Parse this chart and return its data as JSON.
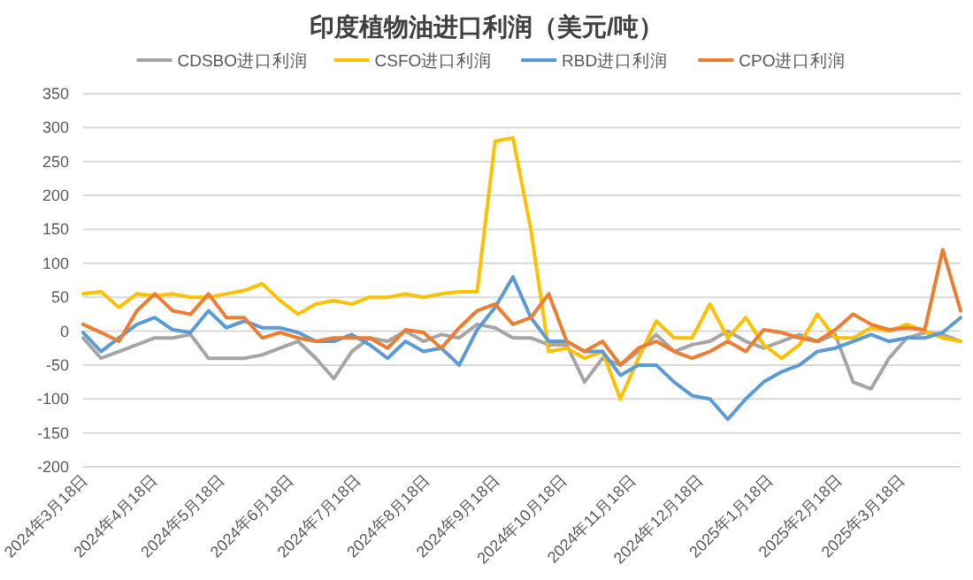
{
  "chart_data": {
    "type": "line",
    "title": "印度植物油进口利润（美元/吨）",
    "x": [
      "2024-03-18",
      "2024-03-26",
      "2024-04-03",
      "2024-04-11",
      "2024-04-19",
      "2024-04-27",
      "2024-05-05",
      "2024-05-13",
      "2024-05-21",
      "2024-05-29",
      "2024-06-06",
      "2024-06-14",
      "2024-06-22",
      "2024-06-30",
      "2024-07-08",
      "2024-07-16",
      "2024-07-24",
      "2024-08-01",
      "2024-08-09",
      "2024-08-17",
      "2024-08-25",
      "2024-09-02",
      "2024-09-10",
      "2024-09-18",
      "2024-09-26",
      "2024-10-04",
      "2024-10-12",
      "2024-10-20",
      "2024-10-28",
      "2024-11-05",
      "2024-11-13",
      "2024-11-21",
      "2024-11-29",
      "2024-12-07",
      "2024-12-15",
      "2024-12-23",
      "2024-12-31",
      "2025-01-08",
      "2025-01-16",
      "2025-01-24",
      "2025-02-01",
      "2025-02-09",
      "2025-02-17",
      "2025-02-25",
      "2025-03-05",
      "2025-03-13",
      "2025-03-21",
      "2025-03-29",
      "2025-04-06",
      "2025-04-14"
    ],
    "series": [
      {
        "name": "CDSBO进口利润",
        "color": "#a5a5a5",
        "values": [
          -10,
          -40,
          -30,
          -20,
          -10,
          -10,
          -5,
          -40,
          -40,
          -40,
          -35,
          -25,
          -15,
          -40,
          -70,
          -30,
          -10,
          -15,
          0,
          -15,
          -5,
          -10,
          10,
          5,
          -10,
          -10,
          -20,
          -20,
          -75,
          -40,
          -50,
          -30,
          -5,
          -30,
          -20,
          -15,
          0,
          -15,
          -25,
          -15,
          -5,
          -15,
          -5,
          -75,
          -85,
          -40,
          -10,
          -2,
          -5,
          -15
        ]
      },
      {
        "name": "CSFO进口利润",
        "color": "#ffc000",
        "values": [
          55,
          58,
          35,
          55,
          52,
          55,
          50,
          50,
          55,
          60,
          70,
          45,
          25,
          40,
          45,
          40,
          50,
          50,
          55,
          50,
          55,
          58,
          58,
          280,
          285,
          150,
          -30,
          -25,
          -40,
          -30,
          -100,
          -40,
          15,
          -10,
          -10,
          40,
          -10,
          20,
          -20,
          -40,
          -20,
          25,
          -10,
          -10,
          5,
          0,
          10,
          0,
          -10,
          -15
        ]
      },
      {
        "name": "RBD进口利润",
        "color": "#5b9bd5",
        "values": [
          -2,
          -30,
          -10,
          10,
          20,
          2,
          -2,
          30,
          5,
          15,
          5,
          5,
          -2,
          -15,
          -15,
          -5,
          -20,
          -40,
          -15,
          -30,
          -25,
          -50,
          2,
          35,
          80,
          20,
          -15,
          -15,
          -30,
          -30,
          -65,
          -50,
          -50,
          -75,
          -95,
          -100,
          -130,
          -100,
          -75,
          -60,
          -50,
          -30,
          -25,
          -15,
          -5,
          -15,
          -10,
          -10,
          -2,
          20
        ]
      },
      {
        "name": "CPO进口利润",
        "color": "#ed7d31",
        "values": [
          10,
          -2,
          -15,
          30,
          55,
          30,
          25,
          55,
          20,
          20,
          -10,
          -2,
          -10,
          -15,
          -10,
          -10,
          -10,
          -25,
          2,
          -2,
          -25,
          5,
          30,
          40,
          10,
          20,
          55,
          -15,
          -30,
          -15,
          -50,
          -25,
          -15,
          -30,
          -40,
          -30,
          -15,
          -30,
          2,
          -2,
          -10,
          -15,
          2,
          25,
          10,
          2,
          5,
          2,
          120,
          30
        ]
      }
    ],
    "ylim": [
      -200,
      350
    ],
    "yticks": [
      -200,
      -150,
      -100,
      -50,
      0,
      50,
      100,
      150,
      200,
      250,
      300,
      350
    ],
    "xlim": [
      "2024-03-18",
      "2025-04-14"
    ],
    "xticks": [
      {
        "value": "2024-03-18",
        "label": "2024年3月18日"
      },
      {
        "value": "2024-04-18",
        "label": "2024年4月18日"
      },
      {
        "value": "2024-05-18",
        "label": "2024年5月18日"
      },
      {
        "value": "2024-06-18",
        "label": "2024年6月18日"
      },
      {
        "value": "2024-07-18",
        "label": "2024年7月18日"
      },
      {
        "value": "2024-08-18",
        "label": "2024年8月18日"
      },
      {
        "value": "2024-09-18",
        "label": "2024年9月18日"
      },
      {
        "value": "2024-10-18",
        "label": "2024年10月18日"
      },
      {
        "value": "2024-11-18",
        "label": "2024年11月18日"
      },
      {
        "value": "2024-12-18",
        "label": "2024年12月18日"
      },
      {
        "value": "2025-01-18",
        "label": "2025年1月18日"
      },
      {
        "value": "2025-02-18",
        "label": "2025年2月18日"
      },
      {
        "value": "2025-03-18",
        "label": "2025年3月18日"
      }
    ],
    "grid": "y",
    "legend": "top",
    "marker": "none",
    "line_style": "solid"
  }
}
